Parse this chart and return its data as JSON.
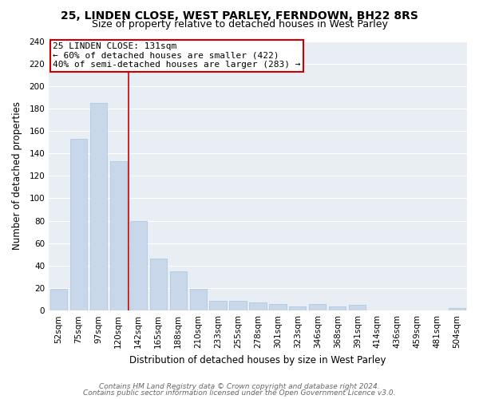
{
  "title": "25, LINDEN CLOSE, WEST PARLEY, FERNDOWN, BH22 8RS",
  "subtitle": "Size of property relative to detached houses in West Parley",
  "xlabel": "Distribution of detached houses by size in West Parley",
  "ylabel": "Number of detached properties",
  "bar_color": "#c8d8ea",
  "bar_edge_color": "#b0c8de",
  "categories": [
    "52sqm",
    "75sqm",
    "97sqm",
    "120sqm",
    "142sqm",
    "165sqm",
    "188sqm",
    "210sqm",
    "233sqm",
    "255sqm",
    "278sqm",
    "301sqm",
    "323sqm",
    "346sqm",
    "368sqm",
    "391sqm",
    "414sqm",
    "436sqm",
    "459sqm",
    "481sqm",
    "504sqm"
  ],
  "values": [
    19,
    153,
    185,
    133,
    80,
    46,
    35,
    19,
    9,
    9,
    7,
    6,
    4,
    6,
    4,
    5,
    0,
    0,
    0,
    0,
    2
  ],
  "ylim": [
    0,
    240
  ],
  "yticks": [
    0,
    20,
    40,
    60,
    80,
    100,
    120,
    140,
    160,
    180,
    200,
    220,
    240
  ],
  "red_line_x": 3.5,
  "marker_label": "25 LINDEN CLOSE: 131sqm",
  "annotation_line1": "← 60% of detached houses are smaller (422)",
  "annotation_line2": "40% of semi-detached houses are larger (283) →",
  "footer1": "Contains HM Land Registry data © Crown copyright and database right 2024.",
  "footer2": "Contains public sector information licensed under the Open Government Licence v3.0.",
  "background_color": "#ffffff",
  "plot_bg_color": "#e8eef4",
  "annotation_box_color": "#ffffff",
  "annotation_box_edge": "#cc0000",
  "red_line_color": "#cc0000",
  "grid_color": "#ffffff",
  "title_fontsize": 10,
  "subtitle_fontsize": 9,
  "axis_label_fontsize": 8.5,
  "tick_fontsize": 7.5,
  "annotation_fontsize": 8,
  "footer_fontsize": 6.5
}
